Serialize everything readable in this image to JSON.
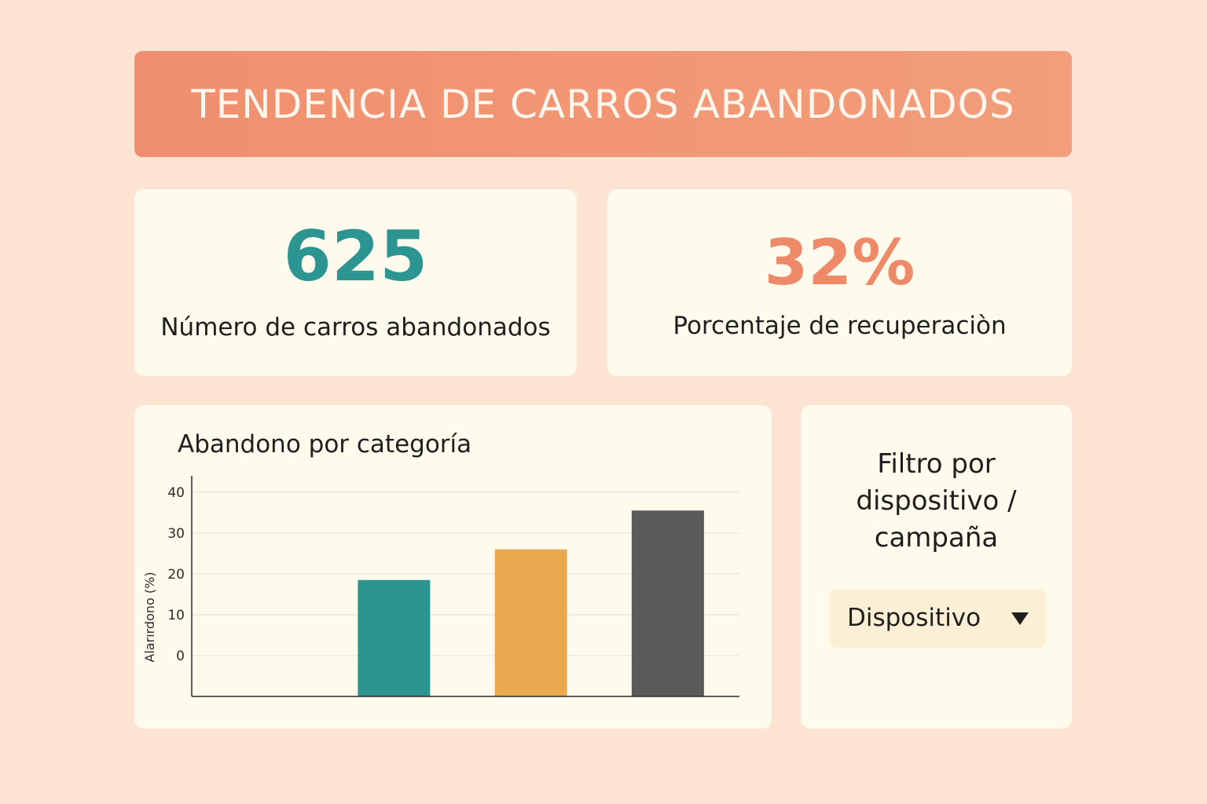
{
  "header": {
    "title": "TENDENCIA DE CARROS ABANDONADOS"
  },
  "kpis": [
    {
      "value": "625",
      "label": "Número de carros abandonados",
      "color": "#2d9591"
    },
    {
      "value": "32%",
      "label": "Porcentaje de recuperaciòn",
      "color": "#ef8a69"
    }
  ],
  "chart_card": {
    "title": "Abandono por categoría"
  },
  "chart_data": {
    "type": "bar",
    "title": "Abandono por categoría",
    "xlabel": "",
    "ylabel": "Alarırdono (%)",
    "ylim": [
      -10,
      44
    ],
    "yticks": [
      0,
      10,
      20,
      30,
      40
    ],
    "grid": true,
    "categories": [
      "",
      "",
      "",
      ""
    ],
    "values": [
      0,
      18.5,
      26,
      35.5
    ],
    "colors": [
      "#2d9591",
      "#2d9591",
      "#e9a94f",
      "#5a5a5a"
    ]
  },
  "filter": {
    "title_lines": [
      "Filtro por",
      "dispositivo /",
      "campaña"
    ],
    "selected": "Dispositivo",
    "icon": "chevron-down-icon"
  }
}
